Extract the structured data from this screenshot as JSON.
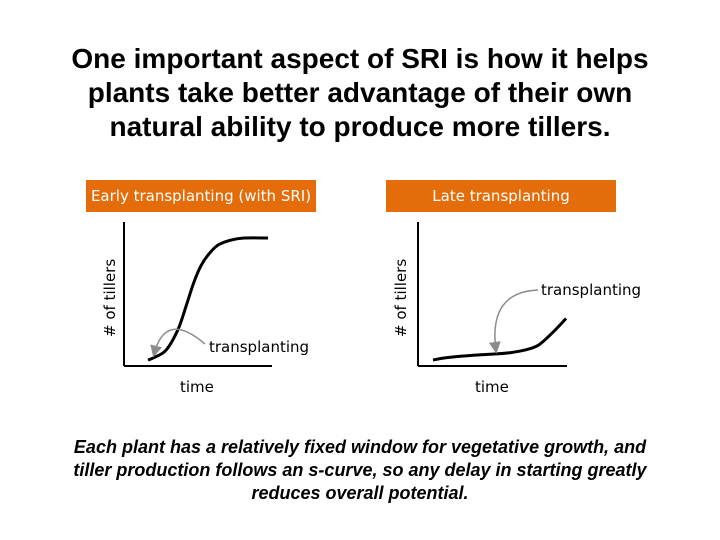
{
  "title": "One important aspect of SRI is how it helps plants take better advantage of their own natural ability to produce more tillers.",
  "footer": "Each plant has a relatively fixed window for vegetative growth, and tiller production follows an s-curve, so any delay in starting greatly reduces overall potential.",
  "colors": {
    "accent": "#e46c0a",
    "arrow": "#8c8c8c",
    "curve": "#000000"
  },
  "chart_data": [
    {
      "type": "line",
      "title": "Early transplanting (with SRI)",
      "xlabel": "time",
      "ylabel": "# of tillers",
      "annotation": "transplanting",
      "x": [
        0,
        0.05,
        0.15,
        0.25,
        0.32,
        0.38,
        0.44,
        0.5,
        0.58,
        0.68,
        0.8,
        1.0
      ],
      "y": [
        0,
        0.02,
        0.08,
        0.25,
        0.45,
        0.63,
        0.77,
        0.86,
        0.94,
        0.98,
        1.0,
        1.0
      ],
      "transplant_x": 0.05
    },
    {
      "type": "line",
      "title": "Late transplanting",
      "xlabel": "time",
      "ylabel": "# of tillers",
      "annotation": "transplanting",
      "x": [
        0,
        0.1,
        0.3,
        0.45,
        0.55,
        0.65,
        0.75,
        0.85,
        0.95
      ],
      "y": [
        0,
        0.02,
        0.04,
        0.05,
        0.06,
        0.08,
        0.12,
        0.22,
        0.34
      ],
      "transplant_x": 0.45
    }
  ]
}
